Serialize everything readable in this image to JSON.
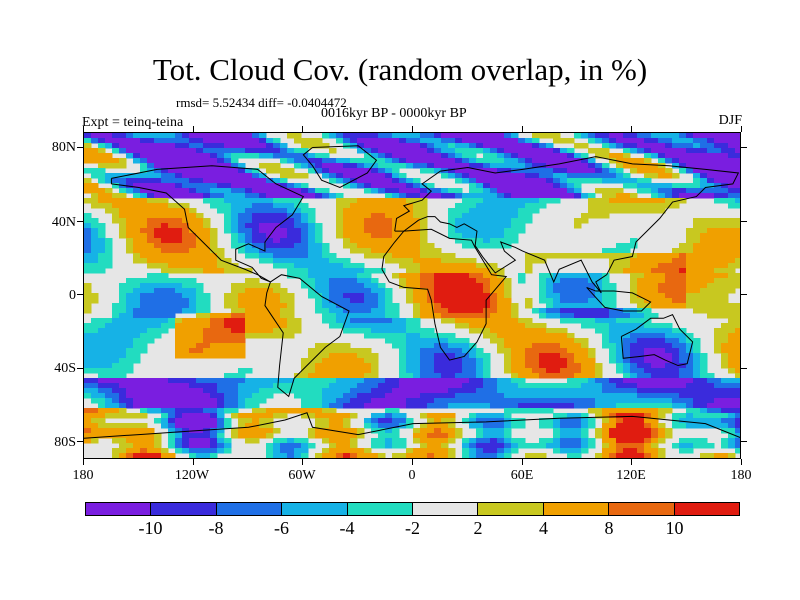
{
  "title": "Tot. Cloud Cov. (random overlap, in %)",
  "stats": "rmsd= 5.52434 diff= -0.0404472",
  "expt": "Expt = teinq-teina",
  "period": "0016kyr BP - 0000kyr BP",
  "season": "DJF",
  "lat_labels": [
    "80N",
    "40N",
    "0",
    "40S",
    "80S"
  ],
  "lon_labels": [
    "180",
    "120W",
    "60W",
    "0",
    "60E",
    "120E",
    "180"
  ],
  "colorbar": {
    "colors": [
      "#7a1ee0",
      "#3a2bdc",
      "#1f6fe6",
      "#16b2e6",
      "#22dcc0",
      "#e6e6e6",
      "#c8c820",
      "#f0a000",
      "#e86810",
      "#e01c10"
    ],
    "labels": [
      "-10",
      "-8",
      "-6",
      "-4",
      "-2",
      "2",
      "4",
      "8",
      "10"
    ]
  },
  "map": {
    "background": "#e6e6e6",
    "coastline_color": "#000000"
  }
}
